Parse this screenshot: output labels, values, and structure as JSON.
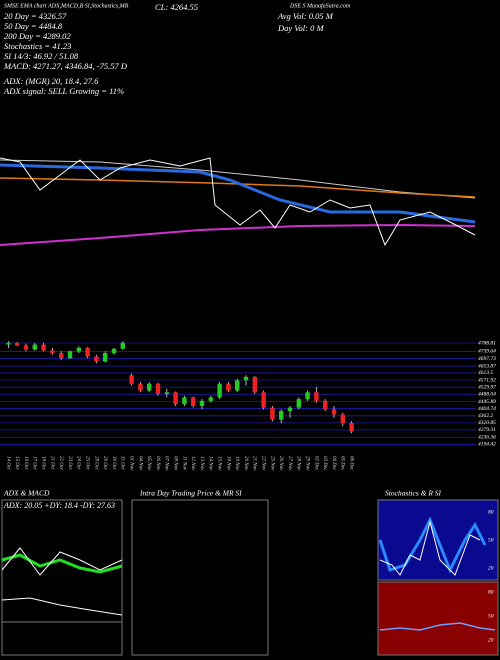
{
  "header": {
    "source": "SMSE EMA chart ADX,MACD,B SI,Stochastics,MR",
    "close": "CL: 4264.55",
    "site": "DSE S MunafaSutra.com"
  },
  "indicators": {
    "left": [
      "20 Day = 4326.57",
      "50 Day = 4484.8",
      "200 Day = 4289.02",
      "Stochastics = 41.23",
      "SI 14/3: 46.92 / 51.08",
      "MACD: 4271.27, 4346.84, -75.57 D"
    ],
    "adx": [
      "ADX: (MGR) 20, 18.4, 27.6",
      "ADX signal: SELL Growing = 11%"
    ],
    "right": [
      "Avg Vol: 0.05 M",
      "Day Vol: 0 M"
    ]
  },
  "panels": {
    "adx_title": "ADX & MACD",
    "adx_values": "ADX: 20.05 +DY: 18.4 -DY: 27.63",
    "intraday_title": "Intra Day Trading Price & MR SI",
    "stoch_title": "Stochastics & R SI",
    "stoch_ticks": [
      "80",
      "50",
      "20"
    ],
    "rsi_ticks": [
      "80",
      "50",
      "20"
    ]
  },
  "chart_data": {
    "type": "candlestick",
    "categories": [
      "14 Oct",
      "15 Oct",
      "16 Oct",
      "17 Oct",
      "18 Oct",
      "21 Oct",
      "22 Oct",
      "23 Oct",
      "24 Oct",
      "25 Oct",
      "28 Oct",
      "29 Oct",
      "30 Oct",
      "31 Oct",
      "01 Nov",
      "04 Nov",
      "05 Nov",
      "06 Nov",
      "07 Nov",
      "08 Nov",
      "11 Nov",
      "12 Nov",
      "13 Nov",
      "14 Nov",
      "15 Nov",
      "18 Nov",
      "19 Nov",
      "20 Nov",
      "21 Nov",
      "22 Nov",
      "25 Nov",
      "26 Nov",
      "27 Nov",
      "28 Nov",
      "29 Nov",
      "02 Dec",
      "03 Dec",
      "04 Dec",
      "05 Dec",
      "06 Dec"
    ],
    "open": [
      4780,
      4790,
      4775,
      4750,
      4780,
      4745,
      4730,
      4700,
      4740,
      4760,
      4710,
      4680,
      4730,
      4755,
      4600,
      4550,
      4510,
      4550,
      4490,
      4500,
      4430,
      4470,
      4420,
      4450,
      4470,
      4550,
      4510,
      4570,
      4590,
      4500,
      4410,
      4340,
      4390,
      4410,
      4460,
      4500,
      4450,
      4400,
      4370,
      4320
    ],
    "high": [
      4800,
      4795,
      4785,
      4790,
      4790,
      4760,
      4740,
      4745,
      4770,
      4765,
      4720,
      4740,
      4760,
      4800,
      4610,
      4560,
      4560,
      4555,
      4520,
      4505,
      4480,
      4475,
      4460,
      4480,
      4560,
      4560,
      4580,
      4600,
      4595,
      4510,
      4420,
      4400,
      4420,
      4470,
      4510,
      4530,
      4460,
      4420,
      4380,
      4330
    ],
    "low": [
      4760,
      4770,
      4740,
      4745,
      4740,
      4720,
      4690,
      4695,
      4730,
      4700,
      4670,
      4675,
      4720,
      4750,
      4540,
      4500,
      4500,
      4480,
      4470,
      4420,
      4420,
      4410,
      4400,
      4440,
      4460,
      4500,
      4500,
      4540,
      4490,
      4400,
      4330,
      4320,
      4350,
      4400,
      4450,
      4440,
      4390,
      4350,
      4300,
      4260
    ],
    "close": [
      4790,
      4775,
      4750,
      4780,
      4745,
      4730,
      4700,
      4740,
      4760,
      4710,
      4680,
      4730,
      4755,
      4790,
      4550,
      4510,
      4550,
      4490,
      4500,
      4430,
      4470,
      4420,
      4450,
      4470,
      4550,
      4510,
      4570,
      4590,
      4500,
      4410,
      4340,
      4390,
      4410,
      4460,
      4500,
      4450,
      4400,
      4370,
      4320,
      4270
    ],
    "up_color": "#22cc22",
    "down_color": "#ee2222",
    "ylim": [
      4150,
      4830
    ],
    "yticks": [
      4194.42,
      4236.36,
      4279.31,
      4320.85,
      4362.2,
      4404.74,
      4445.89,
      4488.04,
      4529.97,
      4571.92,
      4613.5,
      4653.87,
      4697.73,
      4739.64,
      4788.81
    ],
    "grid": true,
    "grid_color": "#1c1ca8"
  }
}
